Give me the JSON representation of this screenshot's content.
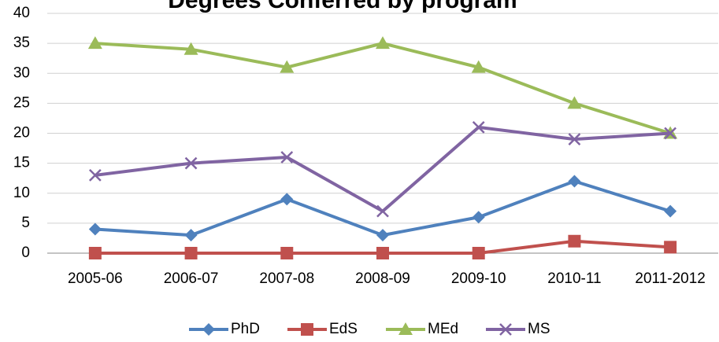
{
  "chart_data": {
    "type": "line",
    "title": "Degrees Conferred by program",
    "categories": [
      "2005-06",
      "2006-07",
      "2007-08",
      "2008-09",
      "2009-10",
      "2010-11",
      "2011-2012"
    ],
    "series": [
      {
        "name": "PhD",
        "color": "#4f81bd",
        "marker": "diamond",
        "values": [
          4,
          3,
          9,
          3,
          6,
          12,
          7
        ]
      },
      {
        "name": "EdS",
        "color": "#c0504d",
        "marker": "square",
        "values": [
          0,
          0,
          0,
          0,
          0,
          2,
          1
        ]
      },
      {
        "name": "MEd",
        "color": "#9bbb59",
        "marker": "triangle",
        "values": [
          35,
          34,
          31,
          35,
          31,
          25,
          20
        ]
      },
      {
        "name": "MS",
        "color": "#8064a2",
        "marker": "x",
        "values": [
          13,
          15,
          16,
          7,
          21,
          19,
          20
        ]
      }
    ],
    "ylim": [
      0,
      40
    ],
    "yticks": [
      0,
      5,
      10,
      15,
      20,
      25,
      30,
      35,
      40
    ],
    "grid": true,
    "legend": "bottom"
  }
}
